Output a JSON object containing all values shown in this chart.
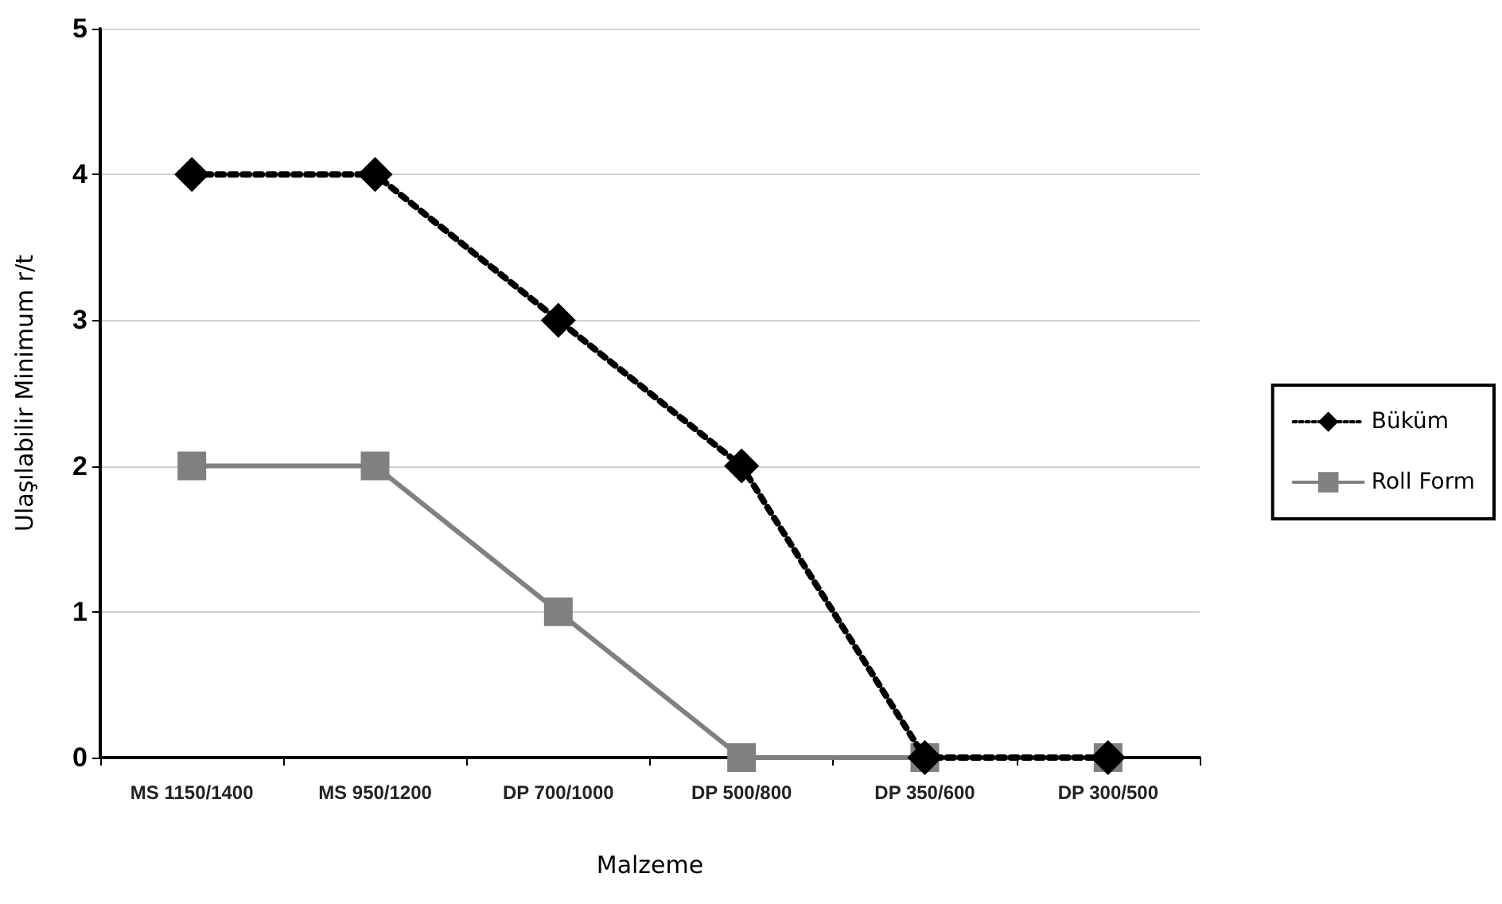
{
  "chart_data": {
    "type": "line",
    "xlabel": "Malzeme",
    "ylabel": "Ulaşılabilir Minimum r/t",
    "categories": [
      "MS 1150/1400",
      "MS 950/1200",
      "DP 700/1000",
      "DP 500/800",
      "DP 350/600",
      "DP 300/500"
    ],
    "series": [
      {
        "name": "Büküm",
        "color": "#000000",
        "values": [
          4,
          4,
          3,
          2,
          0,
          0
        ],
        "marker": "diamond",
        "line_style": "dotted"
      },
      {
        "name": "Roll Form",
        "color": "#808080",
        "values": [
          2,
          2,
          1,
          0,
          0,
          0
        ],
        "marker": "square",
        "line_style": "solid"
      }
    ],
    "ylim": [
      0,
      5
    ],
    "yticks": [
      0,
      1,
      2,
      3,
      4,
      5
    ],
    "grid": "y",
    "legend": "right"
  }
}
